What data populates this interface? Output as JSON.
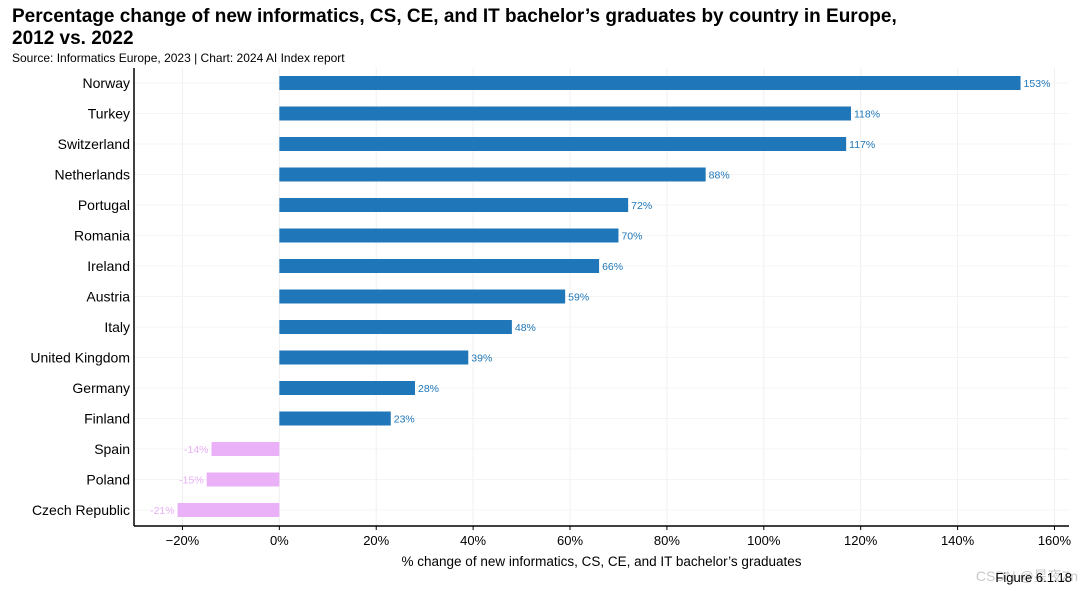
{
  "header": {
    "title_line1": "Percentage change of new informatics, CS, CE, and IT bachelor’s graduates by country in Europe,",
    "title_line2": "2012 vs. 2022",
    "source": "Source: Informatics Europe, 2023 | Chart: 2024 AI Index report"
  },
  "footer": {
    "figure": "Figure 6.1.18",
    "watermark": "CSDN @星夜Zn"
  },
  "chart_data": {
    "type": "bar",
    "orientation": "horizontal",
    "xlabel": "% change of new informatics, CS, CE, and IT bachelor’s graduates",
    "ylabel": "",
    "xlim": [
      -30,
      163
    ],
    "xticks": [
      -20,
      0,
      20,
      40,
      60,
      80,
      100,
      120,
      140,
      160
    ],
    "tick_suffix": "%",
    "grid": true,
    "categories": [
      "Norway",
      "Turkey",
      "Switzerland",
      "Netherlands",
      "Portugal",
      "Romania",
      "Ireland",
      "Austria",
      "Italy",
      "United Kingdom",
      "Germany",
      "Finland",
      "Spain",
      "Poland",
      "Czech Republic"
    ],
    "values": [
      153,
      118,
      117,
      88,
      72,
      70,
      66,
      59,
      48,
      39,
      28,
      23,
      -14,
      -15,
      -21
    ],
    "value_labels": [
      "153%",
      "118%",
      "117%",
      "88%",
      "72%",
      "70%",
      "66%",
      "59%",
      "48%",
      "39%",
      "28%",
      "23%",
      "-14%",
      "-15%",
      "-21%"
    ],
    "colors": {
      "positive": "#1f77b9",
      "negative": "#eab0f8"
    }
  }
}
